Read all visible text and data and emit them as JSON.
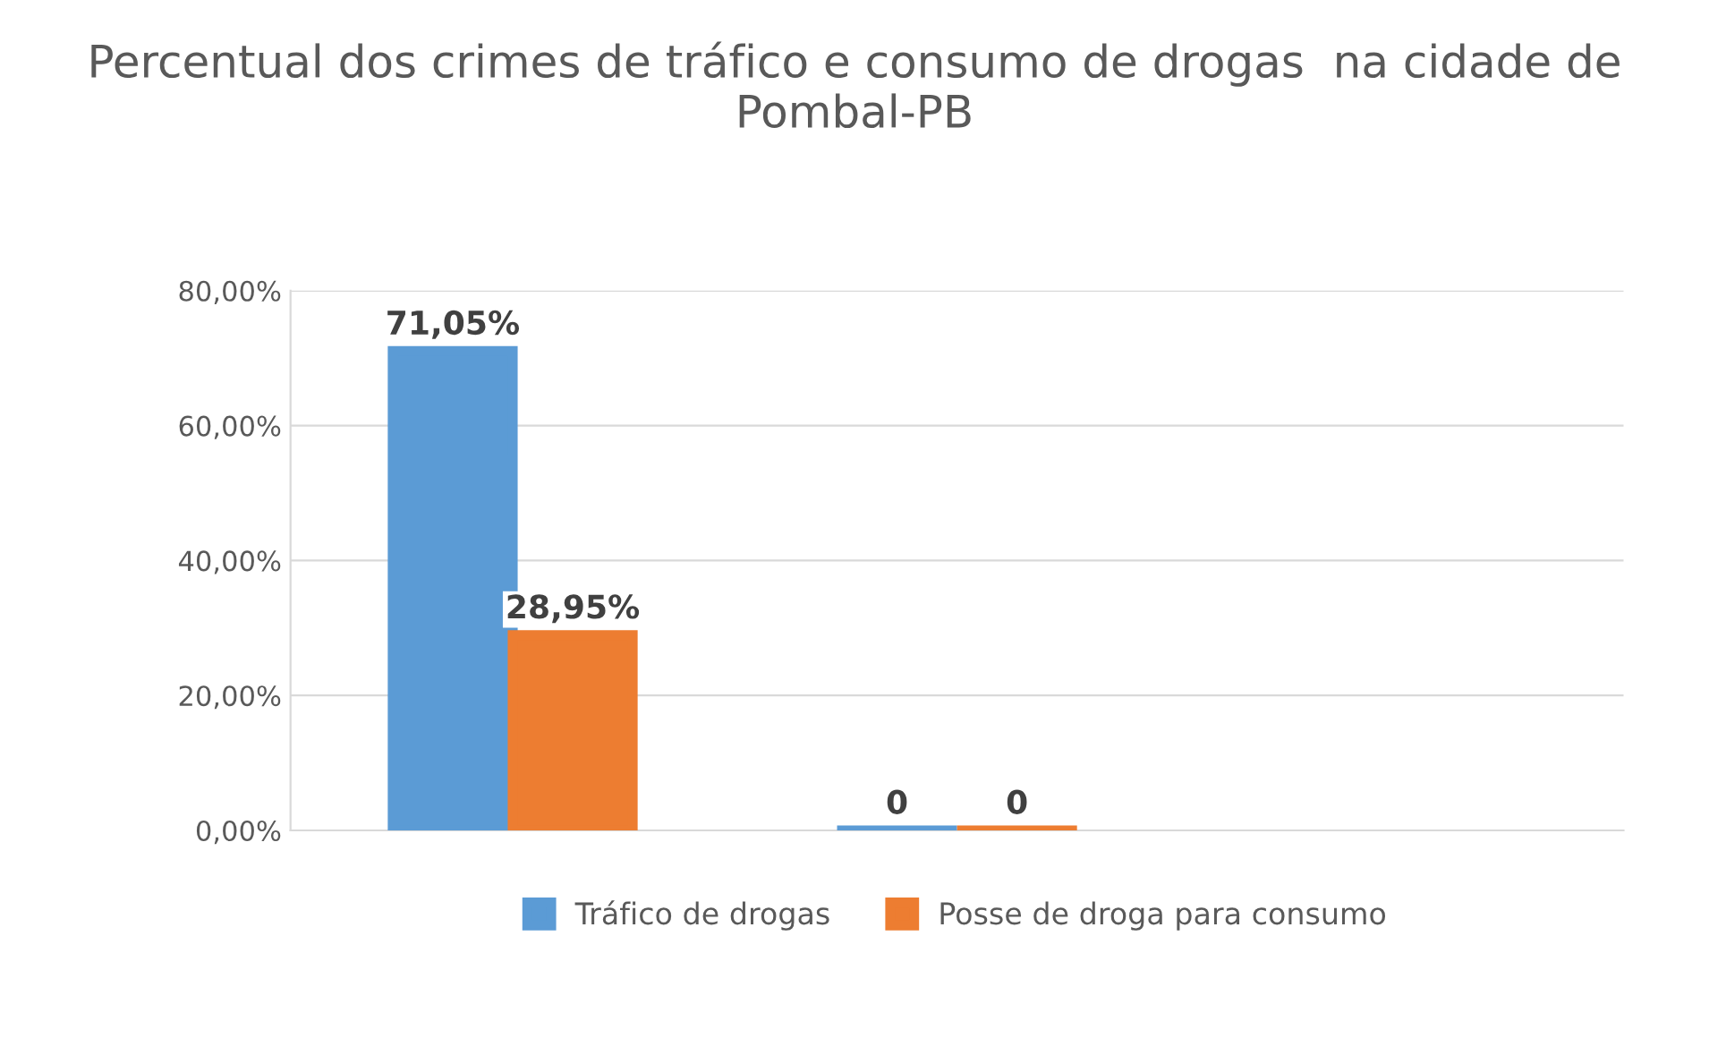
{
  "chart_data": {
    "type": "bar",
    "title": "Percentual dos crimes de tráfico e consumo de drogas  na cidade de Pombal-PB",
    "categories": [
      null,
      null,
      null
    ],
    "series": [
      {
        "name": "Tráfico de drogas",
        "color": "#5b9bd5",
        "values": [
          71.05,
          0,
          null
        ],
        "value_labels": [
          "71,05%",
          "0",
          null
        ]
      },
      {
        "name": "Posse de droga para consumo",
        "color": "#ed7d31",
        "values": [
          28.95,
          0,
          null
        ],
        "value_labels": [
          "28,95%",
          "0",
          null
        ]
      }
    ],
    "ylim": [
      0,
      80
    ],
    "yticks": [
      {
        "value": 0,
        "label": "0,00%"
      },
      {
        "value": 20,
        "label": "20,00%"
      },
      {
        "value": 40,
        "label": "40,00%"
      },
      {
        "value": 60,
        "label": "60,00%"
      },
      {
        "value": 80,
        "label": "80,00%"
      }
    ],
    "grid": "y",
    "legend": "bottom"
  }
}
